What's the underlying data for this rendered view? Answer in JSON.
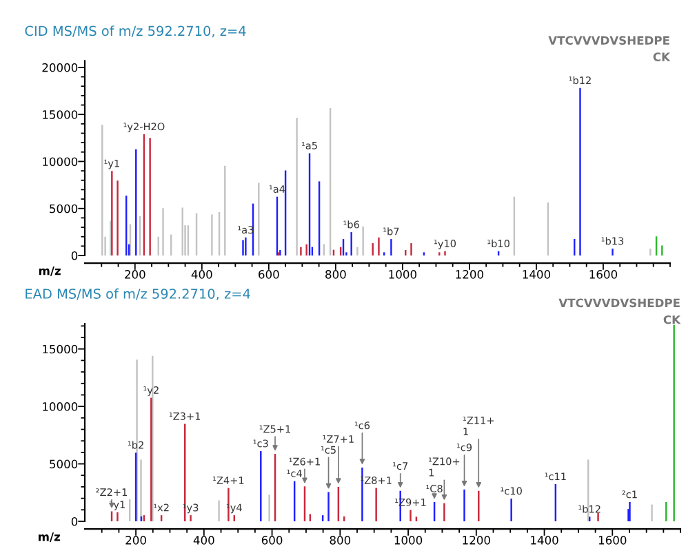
{
  "chart_data": [
    {
      "type": "bar",
      "title": "CID MS/MS of m/z 592.2710, z=4",
      "xlabel": "m/z",
      "xlim": [
        50,
        1800
      ],
      "ylim": [
        0,
        20700
      ],
      "xticks": [
        {
          "value": 100,
          "label": null
        },
        {
          "value": 150,
          "label": null
        },
        200,
        {
          "value": 250,
          "label": null
        },
        {
          "value": 300,
          "label": null
        },
        {
          "value": 350,
          "label": null
        },
        400,
        {
          "value": 450,
          "label": null
        },
        {
          "value": 500,
          "label": null
        },
        {
          "value": 550,
          "label": null
        },
        600,
        {
          "value": 650,
          "label": null
        },
        {
          "value": 700,
          "label": null
        },
        {
          "value": 750,
          "label": null
        },
        800,
        {
          "value": 850,
          "label": null
        },
        {
          "value": 900,
          "label": null
        },
        {
          "value": 950,
          "label": null
        },
        1000,
        {
          "value": 1050,
          "label": null
        },
        {
          "value": 1100,
          "label": null
        },
        {
          "value": 1150,
          "label": null
        },
        1200,
        {
          "value": 1250,
          "label": null
        },
        {
          "value": 1300,
          "label": null
        },
        {
          "value": 1350,
          "label": null
        },
        1400,
        {
          "value": 1450,
          "label": null
        },
        {
          "value": 1500,
          "label": null
        },
        {
          "value": 1550,
          "label": null
        },
        1600,
        {
          "value": 1650,
          "label": null
        },
        {
          "value": 1700,
          "label": null
        },
        {
          "value": 1750,
          "label": null
        },
        {
          "value": 1800,
          "label": null
        }
      ],
      "yticks": [
        0,
        {
          "value": 1000,
          "label": null
        },
        {
          "value": 2000,
          "label": null
        },
        {
          "value": 3000,
          "label": null
        },
        {
          "value": 4000,
          "label": null
        },
        5000,
        {
          "value": 6000,
          "label": null
        },
        {
          "value": 7000,
          "label": null
        },
        {
          "value": 8000,
          "label": null
        },
        {
          "value": 9000,
          "label": null
        },
        10000,
        {
          "value": 11000,
          "label": null
        },
        {
          "value": 12000,
          "label": null
        },
        {
          "value": 13000,
          "label": null
        },
        {
          "value": 14000,
          "label": null
        },
        15000,
        {
          "value": 16000,
          "label": null
        },
        {
          "value": 17000,
          "label": null
        },
        {
          "value": 18000,
          "label": null
        },
        {
          "value": 19000,
          "label": null
        },
        20000
      ],
      "grid": false,
      "series": [
        {
          "color": "#c3c3c3",
          "x": [
            102,
            111,
            127,
            186,
            215,
            270,
            284,
            308,
            342,
            350,
            359,
            384,
            430,
            452,
            469,
            570,
            684,
            765,
            784,
            865,
            882,
            1334,
            1435,
            1741
          ],
          "values": [
            13900,
            2000,
            3700,
            3330,
            4180,
            2000,
            5040,
            2240,
            5090,
            3210,
            3210,
            4500,
            4360,
            4620,
            9540,
            7710,
            14650,
            1200,
            15670,
            900,
            3090,
            6250,
            5640,
            730
          ]
        },
        {
          "color": "#c8283c",
          "x": [
            131,
            148,
            227,
            245,
            629,
            696,
            713,
            794,
            815,
            911,
            929,
            1009,
            1026,
            1110,
            1127
          ],
          "values": [
            8980,
            7960,
            12900,
            12500,
            340,
            900,
            1190,
            610,
            900,
            1310,
            1920,
            580,
            1310,
            340,
            460
          ]
        },
        {
          "color": "#1f1fff",
          "x": [
            174,
            182,
            203,
            523,
            531,
            553,
            625,
            634,
            650,
            722,
            730,
            751,
            823,
            832,
            847,
            945,
            966,
            1064,
            1287,
            1514,
            1531,
            1628
          ],
          "values": [
            6370,
            1190,
            11290,
            1630,
            1920,
            5520,
            6250,
            580,
            9050,
            10880,
            900,
            7880,
            1750,
            340,
            2480,
            340,
            1750,
            340,
            460,
            1750,
            17810,
            730
          ]
        },
        {
          "color": "#2db82d",
          "x": [
            1759,
            1776
          ],
          "values": [
            2040,
            1070
          ]
        }
      ],
      "annotations": [
        {
          "text": "¹y2-H2O",
          "x": 227,
          "y": 12900
        },
        {
          "text": "¹y1",
          "x": 131,
          "y": 8980
        },
        {
          "text": "¹a3",
          "x": 531,
          "y": 1920
        },
        {
          "text": "¹a4",
          "x": 625,
          "y": 6250
        },
        {
          "text": "¹a5",
          "x": 722,
          "y": 10880
        },
        {
          "text": "¹b6",
          "x": 847,
          "y": 2480
        },
        {
          "text": "¹b7",
          "x": 966,
          "y": 1750
        },
        {
          "text": "¹y10",
          "x": 1127,
          "y": 460
        },
        {
          "text": "¹b10",
          "x": 1287,
          "y": 460
        },
        {
          "text": "¹b12",
          "x": 1531,
          "y": 17810
        },
        {
          "text": "¹b13",
          "x": 1628,
          "y": 730
        },
        "VTCVVVDVSHEDPE",
        "CK"
      ]
    },
    {
      "type": "bar",
      "title": "EAD MS/MS of m/z 592.2710, z=4",
      "xlabel": "m/z",
      "xlim": [
        50,
        1800
      ],
      "ylim": [
        0,
        17200
      ],
      "xticks": [
        {
          "value": 100,
          "label": null
        },
        {
          "value": 150,
          "label": null
        },
        200,
        {
          "value": 250,
          "label": null
        },
        {
          "value": 300,
          "label": null
        },
        {
          "value": 350,
          "label": null
        },
        400,
        {
          "value": 450,
          "label": null
        },
        {
          "value": 500,
          "label": null
        },
        {
          "value": 550,
          "label": null
        },
        600,
        {
          "value": 650,
          "label": null
        },
        {
          "value": 700,
          "label": null
        },
        {
          "value": 750,
          "label": null
        },
        800,
        {
          "value": 850,
          "label": null
        },
        {
          "value": 900,
          "label": null
        },
        {
          "value": 950,
          "label": null
        },
        1000,
        {
          "value": 1050,
          "label": null
        },
        {
          "value": 1100,
          "label": null
        },
        {
          "value": 1150,
          "label": null
        },
        1200,
        {
          "value": 1250,
          "label": null
        },
        {
          "value": 1300,
          "label": null
        },
        {
          "value": 1350,
          "label": null
        },
        1400,
        {
          "value": 1450,
          "label": null
        },
        {
          "value": 1500,
          "label": null
        },
        {
          "value": 1550,
          "label": null
        },
        1600,
        {
          "value": 1650,
          "label": null
        },
        {
          "value": 1700,
          "label": null
        },
        {
          "value": 1750,
          "label": null
        },
        {
          "value": 1800,
          "label": null
        }
      ],
      "yticks": [
        0,
        {
          "value": 1000,
          "label": null
        },
        {
          "value": 2000,
          "label": null
        },
        {
          "value": 3000,
          "label": null
        },
        {
          "value": 4000,
          "label": null
        },
        5000,
        {
          "value": 6000,
          "label": null
        },
        {
          "value": 7000,
          "label": null
        },
        {
          "value": 8000,
          "label": null
        },
        {
          "value": 9000,
          "label": null
        },
        10000,
        {
          "value": 11000,
          "label": null
        },
        {
          "value": 12000,
          "label": null
        },
        {
          "value": 13000,
          "label": null
        },
        {
          "value": 14000,
          "label": null
        },
        15000,
        {
          "value": 16000,
          "label": null
        },
        {
          "value": 17000,
          "label": null
        }
      ],
      "grid": false,
      "series": [
        {
          "color": "#c3c3c3",
          "x": [
            182,
            203,
            215,
            249,
            444,
            592,
            1529,
            1716
          ],
          "values": [
            1920,
            14070,
            5370,
            14400,
            1820,
            2310,
            5370,
            1460
          ]
        },
        {
          "color": "#c8283c",
          "x": [
            129,
            146,
            224,
            245,
            275,
            344,
            361,
            472,
            489,
            609,
            696,
            712,
            795,
            812,
            906,
            1007,
            1024,
            1106,
            1207,
            1558
          ],
          "values": [
            870,
            790,
            530,
            10750,
            530,
            8480,
            530,
            2900,
            530,
            5870,
            3040,
            630,
            3000,
            430,
            2900,
            990,
            400,
            1580,
            2650,
            730
          ]
        },
        {
          "color": "#1f1fff",
          "x": [
            200,
            216,
            567,
            666,
            749,
            766,
            865,
            977,
            1077,
            1165,
            1303,
            1433,
            1533,
            1647,
            1651
          ],
          "values": [
            5970,
            430,
            6110,
            3500,
            530,
            2550,
            4680,
            2650,
            1680,
            2770,
            1980,
            3240,
            400,
            1070,
            1680
          ]
        },
        {
          "color": "#2db82d",
          "x": [
            1758,
            1781
          ],
          "values": [
            1680,
            17100
          ]
        }
      ],
      "annotations": [
        {
          "text": "¹y1",
          "x": 146,
          "y": 790
        },
        {
          "text": "²Z2+1",
          "x": 129,
          "y": 870
        },
        {
          "text": "¹b2",
          "x": 200,
          "y": 5970
        },
        {
          "text": "¹y2",
          "x": 245,
          "y": 10750
        },
        {
          "text": "¹Z3+1",
          "x": 344,
          "y": 8480
        },
        {
          "text": "¹x2",
          "x": 275,
          "y": 530
        },
        {
          "text": "¹y3",
          "x": 361,
          "y": 530
        },
        {
          "text": "¹Z4+1",
          "x": 472,
          "y": 2900
        },
        {
          "text": "¹y4",
          "x": 489,
          "y": 530
        },
        {
          "text": "¹c3",
          "x": 567,
          "y": 6110
        },
        {
          "text": "¹Z5+1",
          "x": 609,
          "y": 5870
        },
        {
          "text": "¹c4",
          "x": 666,
          "y": 3500
        },
        {
          "text": "¹Z6+1",
          "x": 696,
          "y": 3040
        },
        {
          "text": "¹c5",
          "x": 766,
          "y": 2550
        },
        {
          "text": "¹Z7+1",
          "x": 795,
          "y": 3000
        },
        {
          "text": "¹c6",
          "x": 865,
          "y": 4680
        },
        {
          "text": "¹Z8+1",
          "x": 906,
          "y": 2900
        },
        {
          "text": "¹c7",
          "x": 977,
          "y": 2650
        },
        {
          "text": "¹Z9+1",
          "x": 1007,
          "y": 990
        },
        {
          "text": "¹C8",
          "x": 1077,
          "y": 1680
        },
        {
          "text": "¹Z10+\n1",
          "x": 1106,
          "y": 1580
        },
        {
          "text": "¹c9",
          "x": 1165,
          "y": 2770
        },
        {
          "text": "¹Z11+\n1",
          "x": 1207,
          "y": 2650
        },
        {
          "text": "¹c10",
          "x": 1303,
          "y": 1980
        },
        {
          "text": "¹c11",
          "x": 1433,
          "y": 3240
        },
        {
          "text": "¹b12",
          "x": 1533,
          "y": 400
        },
        {
          "text": "²c1",
          "x": 1651,
          "y": 1680
        },
        "VTCVVVDVSHEDPE",
        "CK"
      ]
    }
  ]
}
